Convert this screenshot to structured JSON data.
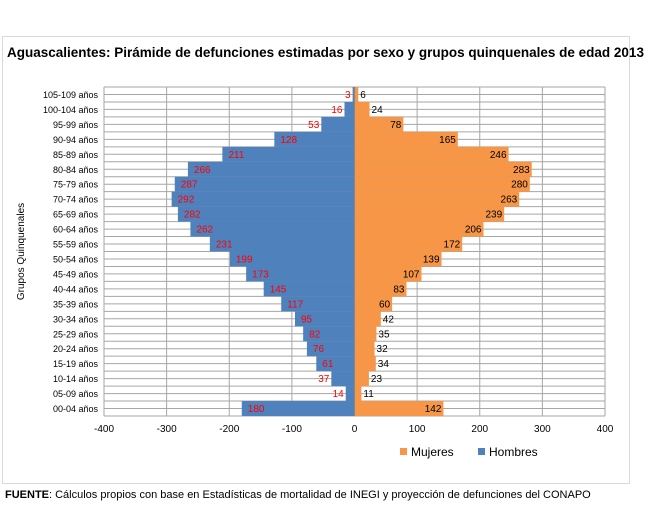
{
  "chart_data": {
    "type": "bar",
    "title": "Aguascalientes: Pirámide de defunciones estimadas por sexo y grupos quinquenales de edad 2013",
    "ylabel": "Grupos Quinquenales",
    "xlabel": "",
    "xlim": [
      -400,
      400
    ],
    "xticks": [
      "-400",
      "-300",
      "-200",
      "-100",
      "0",
      "100",
      "200",
      "300",
      "400"
    ],
    "grid": true,
    "legend_position": "bottom-right",
    "categories": [
      "105-109 años",
      "100-104 años",
      "95-99 años",
      "90-94 años",
      "85-89 años",
      "80-84 años",
      "75-79 años",
      "70-74 años",
      "65-69 años",
      "60-64 años",
      "55-59 años",
      "50-54 años",
      "45-49 años",
      "40-44 años",
      "35-39 años",
      "30-34 años",
      "25-29 años",
      "20-24 años",
      "15-19 años",
      "10-14 años",
      "05-09 años",
      "00-04 años"
    ],
    "series": [
      {
        "name": "Mujeres",
        "color": "#f79646",
        "values": [
          6,
          24,
          78,
          165,
          246,
          283,
          280,
          263,
          239,
          206,
          172,
          139,
          107,
          83,
          60,
          42,
          35,
          32,
          34,
          23,
          11,
          142
        ]
      },
      {
        "name": "Hombres",
        "color": "#4f81bd",
        "values": [
          3,
          16,
          53,
          128,
          211,
          266,
          287,
          292,
          282,
          262,
          231,
          199,
          173,
          145,
          117,
          95,
          82,
          76,
          61,
          37,
          14,
          180
        ]
      }
    ]
  },
  "footer": {
    "label": "FUENTE",
    "text": ": Cálculos propios con base en  Estadísticas de mortalidad  de INEGI y proyección de defunciones del CONAPO"
  }
}
